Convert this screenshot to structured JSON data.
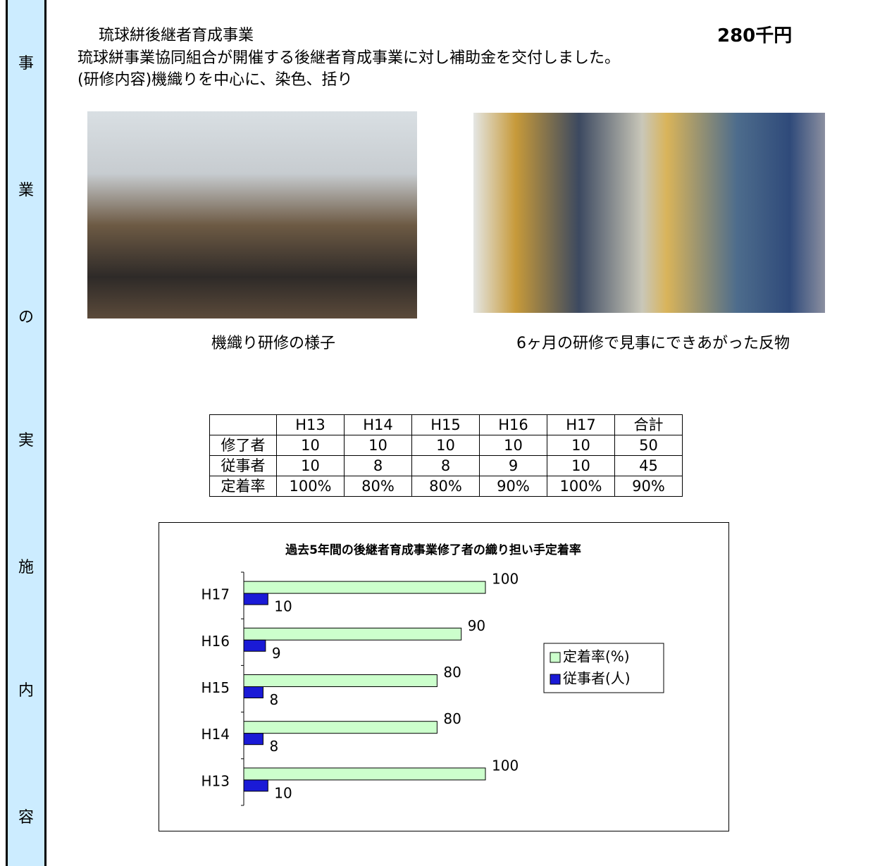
{
  "sidebar": {
    "labels": [
      "事",
      "業",
      "の",
      "実",
      "施",
      "内",
      "容"
    ]
  },
  "header": {
    "title": "琉球絣後継者育成事業",
    "amount": "280千円",
    "lines": [
      "琉球絣事業協同組合が開催する後継者育成事業に対し補助金を交付しました。",
      "(研修内容)機織りを中心に、染色、括り"
    ]
  },
  "photos": [
    {
      "caption": "機織り研修の様子"
    },
    {
      "caption": "6ヶ月の研修で見事にできあがった反物"
    }
  ],
  "table": {
    "header": [
      "H13",
      "H14",
      "H15",
      "H16",
      "H17",
      "合計"
    ],
    "rows": [
      {
        "label": "修了者",
        "cells": [
          "10",
          "10",
          "10",
          "10",
          "10",
          "50"
        ]
      },
      {
        "label": "従事者",
        "cells": [
          "10",
          "8",
          "8",
          "9",
          "10",
          "45"
        ]
      },
      {
        "label": "定着率",
        "cells": [
          "100%",
          "80%",
          "80%",
          "90%",
          "100%",
          "90%"
        ]
      }
    ]
  },
  "chart_data": {
    "type": "barh",
    "title": "過去5年間の後継者育成事業修了者の織り担い手定着率",
    "categories": [
      "H13",
      "H14",
      "H15",
      "H16",
      "H17"
    ],
    "series": [
      {
        "name": "定着率(%)",
        "color": "#ccffcc",
        "values": [
          100,
          80,
          80,
          90,
          100
        ]
      },
      {
        "name": "従事者(人)",
        "color": "#1a1ad6",
        "values": [
          10,
          8,
          8,
          9,
          10
        ]
      }
    ],
    "xlim": [
      0,
      100
    ],
    "legend": "right"
  }
}
